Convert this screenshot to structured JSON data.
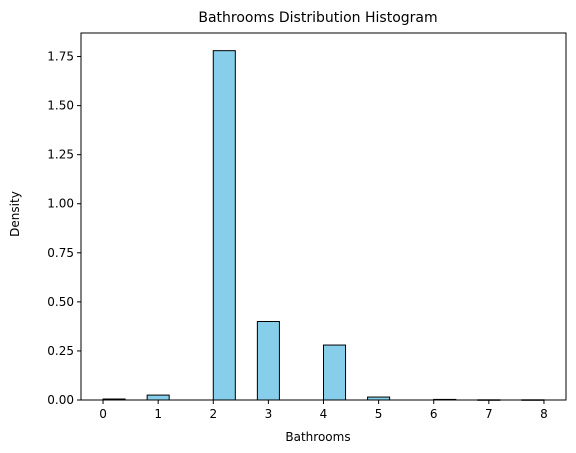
{
  "chart_data": {
    "type": "bar",
    "title": "Bathrooms Distribution Histogram",
    "xlabel": "Bathrooms",
    "ylabel": "Density",
    "xlim": [
      -0.4,
      8.4
    ],
    "ylim": [
      0,
      1.87
    ],
    "x_ticks": [
      0,
      1,
      2,
      3,
      4,
      5,
      6,
      7,
      8
    ],
    "y_ticks": [
      0.0,
      0.25,
      0.5,
      0.75,
      1.0,
      1.25,
      1.5,
      1.75
    ],
    "y_tick_labels": [
      "0.00",
      "0.25",
      "0.50",
      "0.75",
      "1.00",
      "1.25",
      "1.50",
      "1.75"
    ],
    "bin_width": 0.4,
    "bins": [
      {
        "start": 0.0,
        "density": 0.005
      },
      {
        "start": 0.8,
        "density": 0.025
      },
      {
        "start": 2.0,
        "density": 1.78
      },
      {
        "start": 2.8,
        "density": 0.4
      },
      {
        "start": 4.0,
        "density": 0.28
      },
      {
        "start": 4.8,
        "density": 0.015
      },
      {
        "start": 6.0,
        "density": 0.003
      },
      {
        "start": 6.8,
        "density": 0.001
      },
      {
        "start": 7.6,
        "density": 0.001
      }
    ],
    "grid": false,
    "colors": {
      "bar_fill": "#87CEEB",
      "bar_edge": "#000000",
      "axis": "#000000"
    }
  }
}
